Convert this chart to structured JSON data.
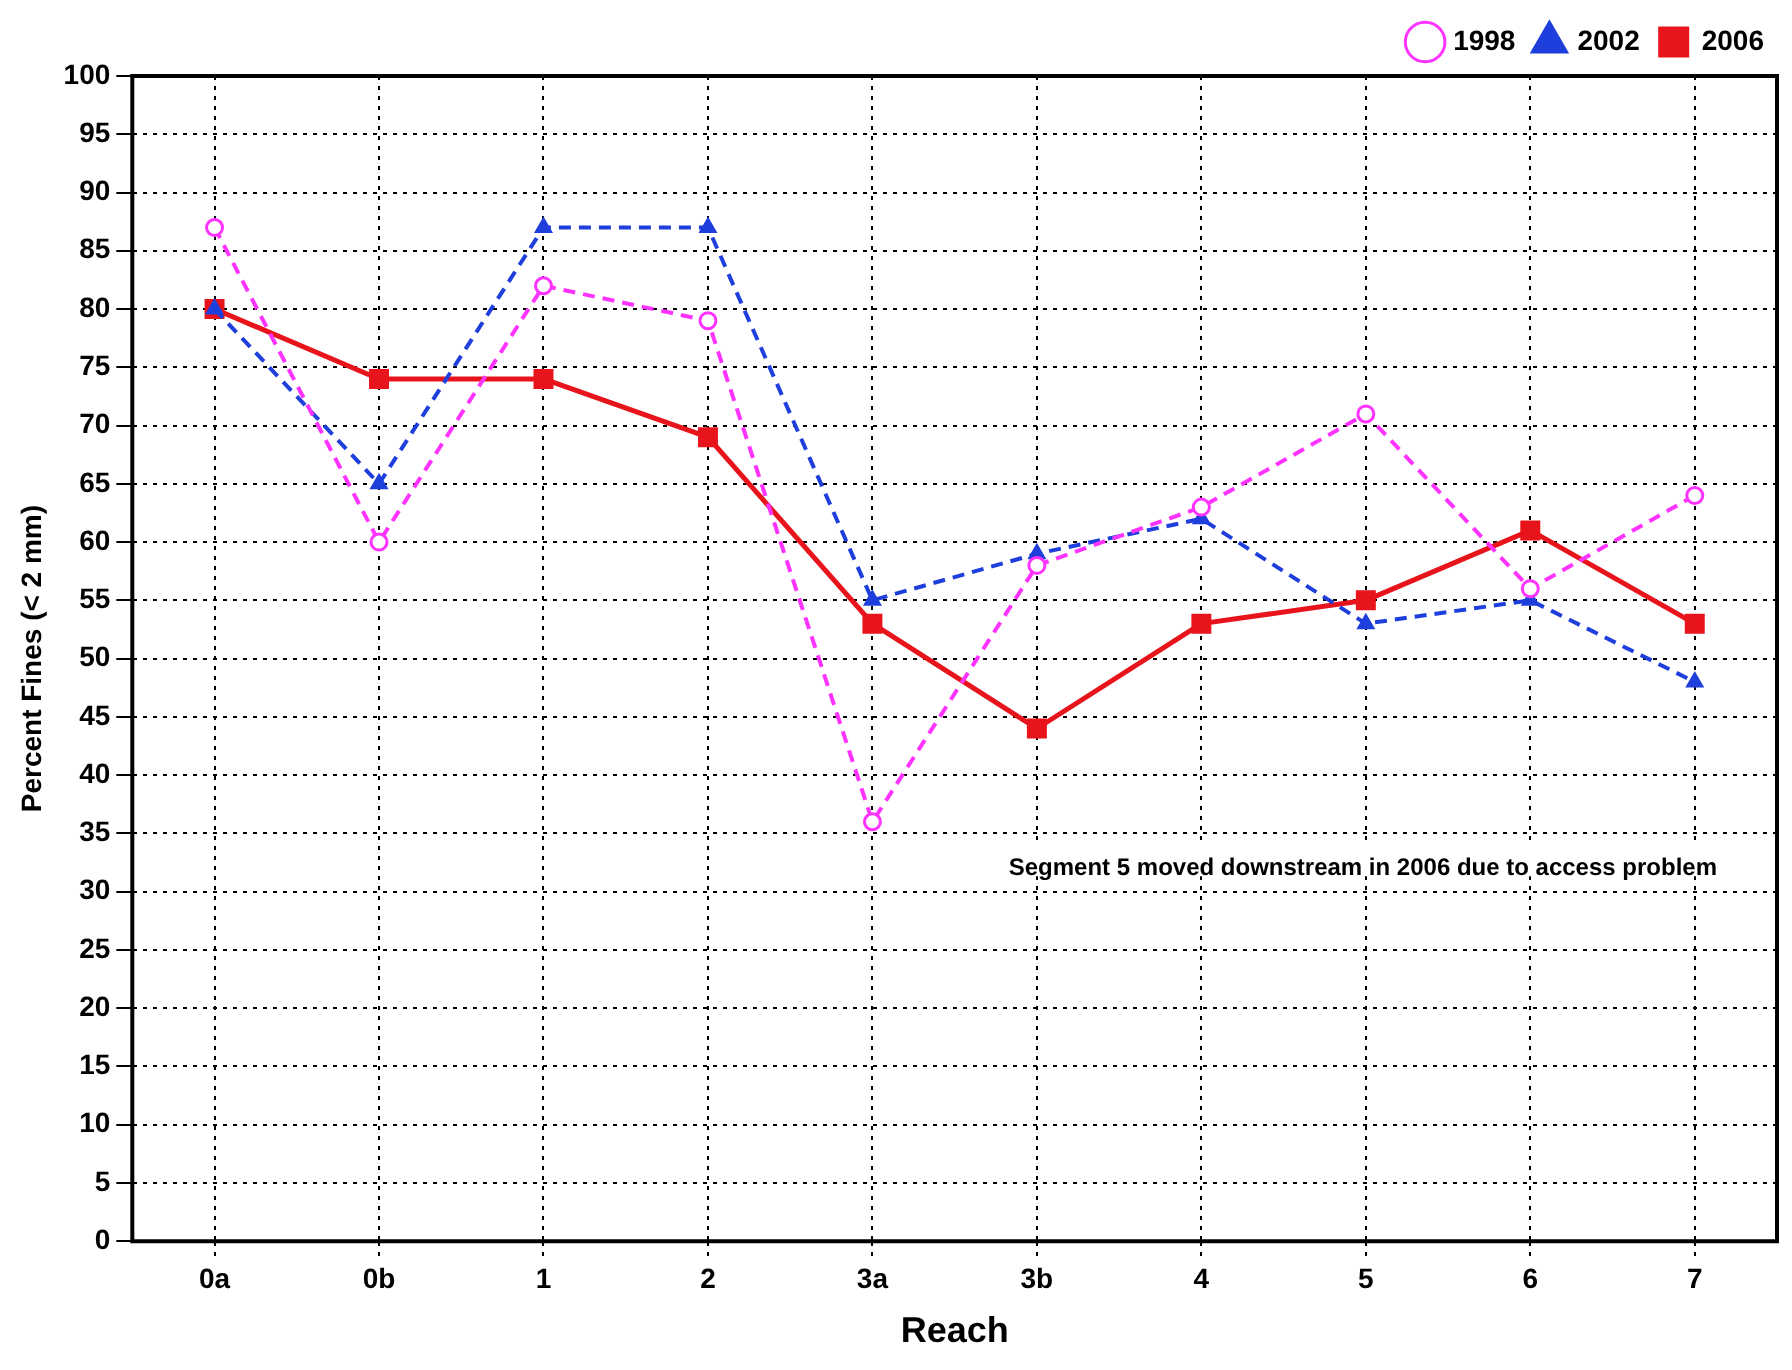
{
  "chart_data": {
    "type": "line",
    "xlabel": "Reach",
    "ylabel": "Percent Fines (< 2 mm)",
    "categories": [
      "0a",
      "0b",
      "1",
      "2",
      "3a",
      "3b",
      "4",
      "5",
      "6",
      "7"
    ],
    "series": [
      {
        "name": "1998",
        "color": "#ff33ff",
        "marker": "circle",
        "line_style": "dashed",
        "values": [
          87,
          60,
          82,
          79,
          36,
          58,
          63,
          71,
          56,
          64
        ]
      },
      {
        "name": "2002",
        "color": "#1f3fdc",
        "marker": "triangle",
        "line_style": "dashed",
        "values": [
          80,
          65,
          87,
          87,
          55,
          59,
          62,
          53,
          55,
          48
        ]
      },
      {
        "name": "2006",
        "color": "#e8141b",
        "marker": "square",
        "line_style": "solid",
        "values": [
          80,
          74,
          74,
          69,
          53,
          44,
          53,
          55,
          61,
          53
        ]
      }
    ],
    "ylim": [
      0,
      100
    ],
    "yticks": [
      0,
      5,
      10,
      15,
      20,
      25,
      30,
      35,
      40,
      45,
      50,
      55,
      60,
      65,
      70,
      75,
      80,
      85,
      90,
      95,
      100
    ],
    "grid": true,
    "legend": "top right",
    "annotations": [
      "Segment 5 moved downstream in 2006 due to access problem"
    ]
  }
}
